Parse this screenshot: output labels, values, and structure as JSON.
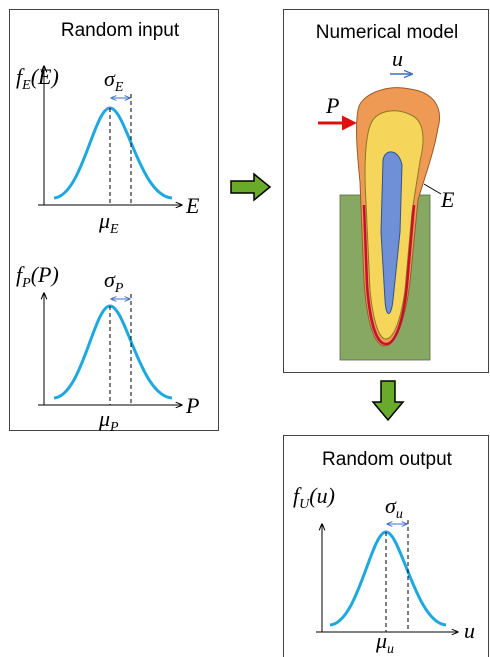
{
  "random_input": {
    "title": "Random input",
    "plots": [
      {
        "density": {
          "f": "f",
          "sub": "E",
          "arg": "(E)"
        },
        "sigma": {
          "sym": "σ",
          "sub": "E"
        },
        "mu": {
          "sym": "μ",
          "sub": "E"
        },
        "axis": "E"
      },
      {
        "density": {
          "f": "f",
          "sub": "P",
          "arg": "(P)"
        },
        "sigma": {
          "sym": "σ",
          "sub": "P"
        },
        "mu": {
          "sym": "μ",
          "sub": "P"
        },
        "axis": "P"
      }
    ]
  },
  "numerical_model": {
    "title": "Numerical model",
    "labels": {
      "displacement": "u",
      "load": "P",
      "modulus": "E"
    }
  },
  "random_output": {
    "title": "Random output",
    "plot": {
      "density": {
        "f": "f",
        "sub": "U",
        "arg": "(u)"
      },
      "sigma": {
        "sym": "σ",
        "sub": "u"
      },
      "mu": {
        "sym": "μ",
        "sub": "u"
      },
      "axis": "u"
    }
  }
}
